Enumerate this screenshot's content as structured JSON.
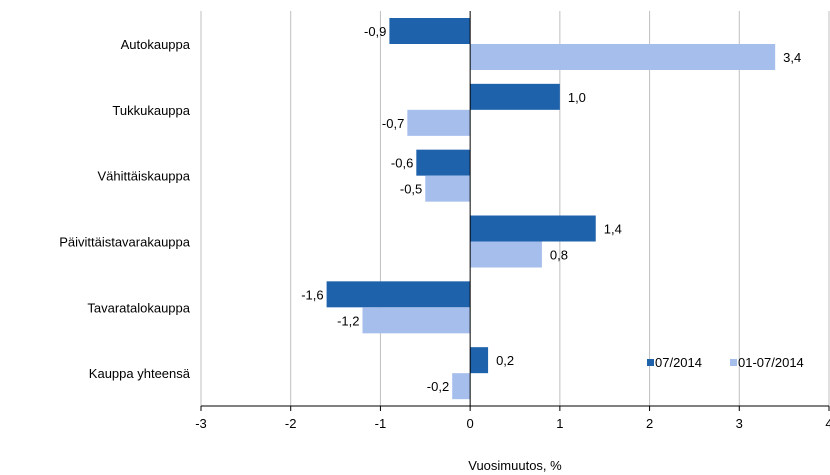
{
  "chart_data": {
    "type": "bar",
    "orientation": "horizontal",
    "categories": [
      "Autokauppa",
      "Tukkukauppa",
      "Vähittäiskauppa",
      "Päivittäistavarakauppa",
      "Tavaratalokauppa",
      "Kauppa yhteensä"
    ],
    "series": [
      {
        "name": "07/2014",
        "values": [
          -0.9,
          1.0,
          -0.6,
          1.4,
          -1.6,
          0.2
        ],
        "labels": [
          "-0,9",
          "1,0",
          "-0,6",
          "1,4",
          "-1,6",
          "0,2"
        ],
        "color": "#1F62AC"
      },
      {
        "name": "01-07/2014",
        "values": [
          3.4,
          -0.7,
          -0.5,
          0.8,
          -1.2,
          -0.2
        ],
        "labels": [
          "3,4",
          "-0,7",
          "-0,5",
          "0,8",
          "-1,2",
          "-0,2"
        ],
        "color": "#A6BEEC"
      }
    ],
    "xlim": [
      -3,
      4
    ],
    "xticks": [
      -3,
      -2,
      -1,
      0,
      1,
      2,
      3,
      4
    ],
    "xlabel": "Vuosimuutos, %",
    "grid": "vertical",
    "legend": "bottom-right"
  }
}
